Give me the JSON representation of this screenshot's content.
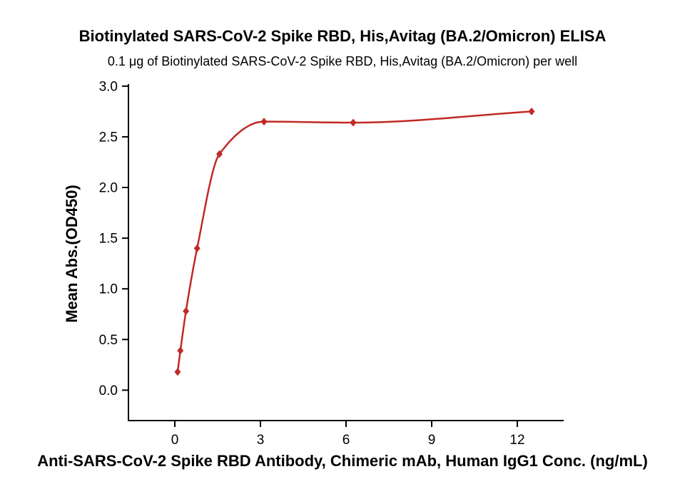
{
  "chart_data": {
    "type": "scatter",
    "title": "Biotinylated SARS-CoV-2 Spike RBD, His,Avitag (BA.2/Omicron)  ELISA",
    "subtitle": "0.1 μg of Biotinylated SARS-CoV-2 Spike RBD, His,Avitag (BA.2/Omicron)  per well",
    "xlabel": "Anti-SARS-CoV-2 Spike RBD Antibody, Chimeric mAb, Human IgG1 Conc. (ng/mL)",
    "ylabel": "Mean Abs.(OD450)",
    "x": [
      0.098,
      0.195,
      0.391,
      0.781,
      1.563,
      3.125,
      6.25,
      12.5
    ],
    "y": [
      0.18,
      0.39,
      0.78,
      1.4,
      2.33,
      2.65,
      2.64,
      2.75
    ],
    "curve": "4-parameter logistic fit through points",
    "marker": "diamond",
    "color": "#c02a26",
    "axis_color": "#000000",
    "xlim": [
      -1.625,
      13.625
    ],
    "ylim": [
      -0.3,
      3.02
    ],
    "xticks": {
      "values": [
        0,
        3,
        6,
        9,
        12
      ],
      "labels": [
        "0",
        "3",
        "6",
        "9",
        "12"
      ]
    },
    "yticks": {
      "values": [
        0.0,
        0.5,
        1.0,
        1.5,
        2.0,
        2.5,
        3.0
      ],
      "labels": [
        "0.0",
        "0.5",
        "1.0",
        "1.5",
        "2.0",
        "2.5",
        "3.0"
      ]
    },
    "grid": false,
    "legend": null
  }
}
